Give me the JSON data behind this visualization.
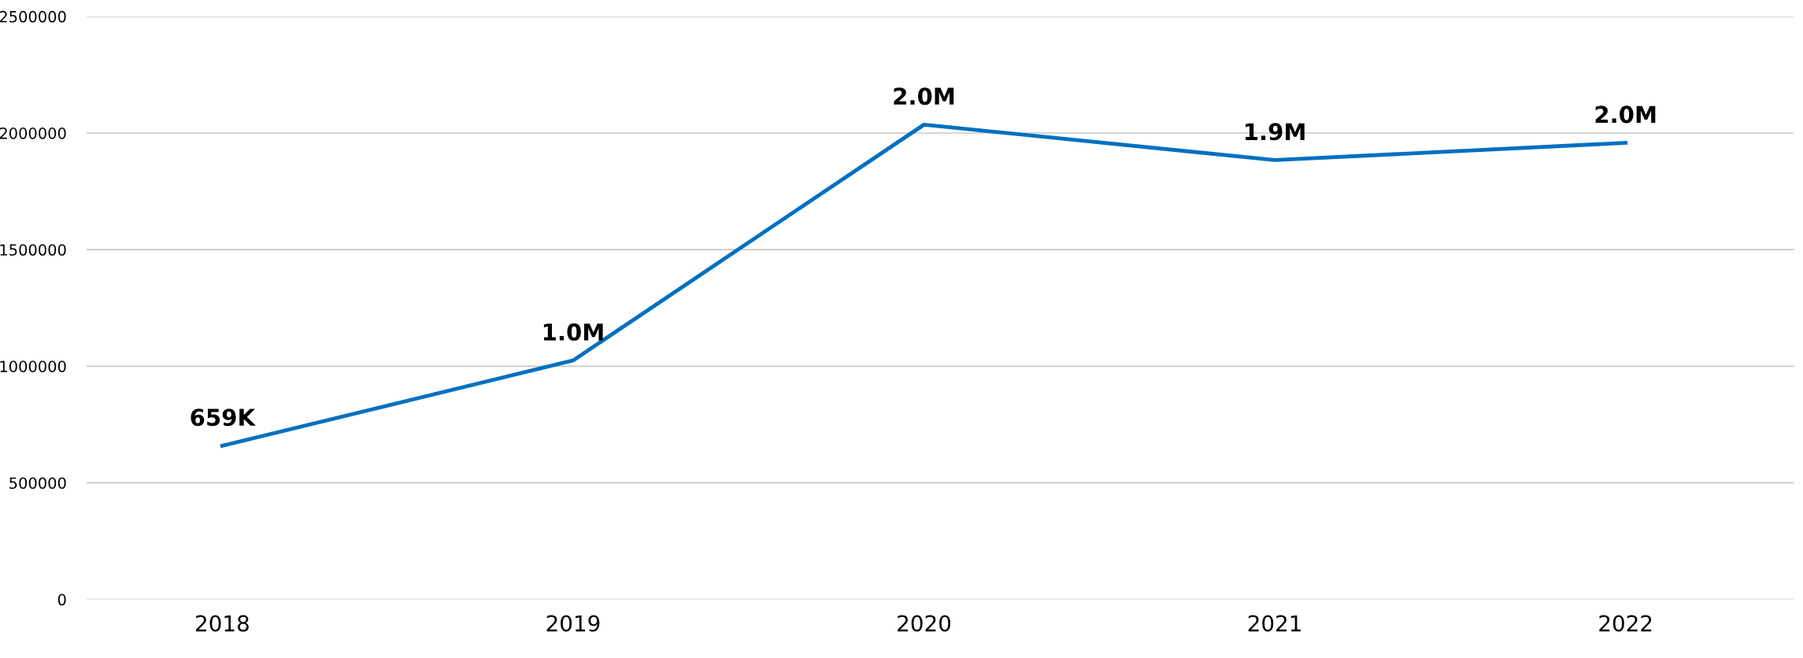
{
  "chart_data": {
    "type": "line",
    "categories": [
      "2018",
      "2019",
      "2020",
      "2021",
      "2022"
    ],
    "series": [
      {
        "color": "#0070c0",
        "values": [
          659000,
          1025000,
          2036000,
          1884000,
          1958000
        ],
        "value_labels": [
          "659K",
          "1.0M",
          "2.0M",
          "1.9M",
          "2.0M"
        ]
      }
    ],
    "ylim": [
      0,
      2500000
    ],
    "yticks": [
      0,
      500000,
      1000000,
      1500000,
      2000000,
      2500000
    ],
    "grid": "y",
    "legend": false,
    "marker": "none",
    "line_style": "solid"
  }
}
